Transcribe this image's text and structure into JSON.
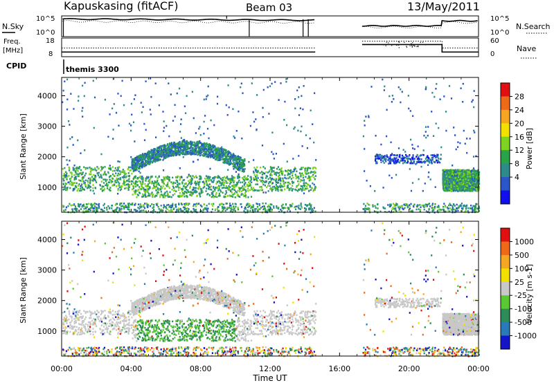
{
  "header": {
    "station": "Kapuskasing (fitACF)",
    "beam": "Beam 03",
    "date": "13/May/2011"
  },
  "nsky_panel": {
    "left_label": "N.Sky",
    "left_ticks": [
      "10^5",
      "10^0"
    ],
    "right_label": "N.Search",
    "right_ticks": [
      "10^5",
      "10^0"
    ]
  },
  "freq_panel": {
    "left_label_1": "Freq.",
    "left_label_2": "[MHz]",
    "left_ticks": [
      "18",
      "8"
    ],
    "right_label": "Nave",
    "right_ticks": [
      "60",
      "0"
    ]
  },
  "cpid_panel": {
    "label": "CPID",
    "program": "themis 3300"
  },
  "power_panel": {
    "ylabel": "Slant Range [km]",
    "colorbar_label": "Power [dB]",
    "colorbar_ticks": [
      "28",
      "24",
      "20",
      "16",
      "12",
      "8",
      "4"
    ],
    "colors": [
      "#1010ee",
      "#2a56c8",
      "#2e8b8b",
      "#2aa24a",
      "#7ed321",
      "#f2e000",
      "#f5a623",
      "#ee6a1a",
      "#e01010"
    ]
  },
  "velocity_panel": {
    "ylabel": "Slant Range [km]",
    "colorbar_label": "Velocity [m s-1]",
    "colorbar_ticks": [
      "1000",
      "500",
      "100",
      "25",
      "-25",
      "-100",
      "-500",
      "-1000"
    ],
    "colors": [
      "#1414c8",
      "#2a7ab8",
      "#2e8b5a",
      "#5ac832",
      "#c8c8c8",
      "#f2e000",
      "#f5a623",
      "#ee6a1a",
      "#e01010"
    ]
  },
  "time_axis": {
    "title": "Time UT",
    "ticks": [
      "00:00",
      "04:00",
      "08:00",
      "12:00",
      "16:00",
      "20:00",
      "00:00"
    ]
  },
  "chart_data": {
    "type": "heatmap",
    "title": "Kapuskasing (fitACF) Beam 03 13/May/2011",
    "xlabel": "Time UT",
    "ylabel": "Slant Range [km]",
    "xlim_hours": [
      0,
      24
    ],
    "ylim_km": [
      180,
      4600
    ],
    "y_ticks": [
      1000,
      2000,
      3000,
      4000
    ],
    "data_gaps_hours": [
      [
        14.6,
        17.3
      ]
    ],
    "power_colorbar_db": [
      4,
      8,
      12,
      16,
      20,
      24,
      28
    ],
    "velocity_colorbar_ms": [
      -1000,
      -500,
      -100,
      -25,
      25,
      100,
      500,
      1000
    ],
    "nsky_log_range": [
      0,
      5
    ],
    "freq_range_mhz": [
      8,
      18
    ],
    "nave_range": [
      0,
      60
    ],
    "freq_trace_mhz": [
      [
        0,
        10.5
      ],
      [
        14.6,
        10.5
      ],
      [
        17.3,
        14.5
      ],
      [
        21.9,
        14.5
      ],
      [
        21.9,
        10.5
      ],
      [
        24,
        10.5
      ]
    ],
    "nave_trace": [
      [
        0,
        18
      ],
      [
        14.6,
        18
      ],
      [
        17.3,
        40
      ],
      [
        21.9,
        40
      ],
      [
        21.9,
        18
      ],
      [
        24,
        18
      ]
    ],
    "scatter_bands": [
      {
        "name": "main ionospheric band",
        "t_start": 0.0,
        "t_end": 14.6,
        "range_km": [
          900,
          1700
        ],
        "mean_power_db": 14
      },
      {
        "name": "upper arc",
        "t_start": 4.0,
        "t_end": 10.5,
        "range_km": [
          1600,
          2600
        ],
        "mean_power_db": 10
      },
      {
        "name": "near-range strip",
        "t_start": 0.0,
        "t_end": 24.0,
        "range_km": [
          200,
          500
        ],
        "mean_power_db": 12
      },
      {
        "name": "late-evening band",
        "t_start": 21.9,
        "t_end": 24.0,
        "range_km": [
          900,
          1600
        ],
        "mean_power_db": 13
      },
      {
        "name": "post-gap band",
        "t_start": 18.0,
        "t_end": 21.8,
        "range_km": [
          1800,
          2100
        ],
        "mean_power_db": 6
      }
    ]
  }
}
